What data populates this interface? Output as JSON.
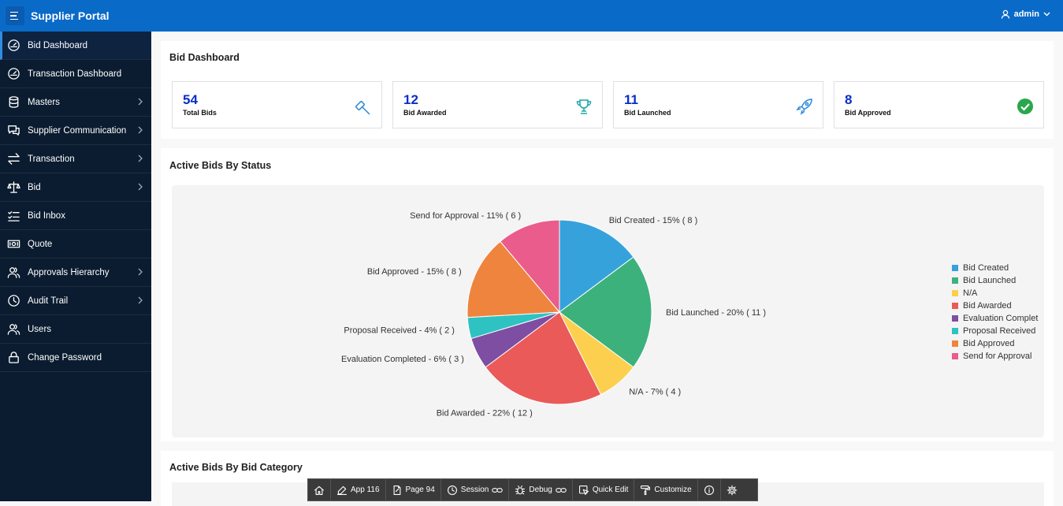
{
  "header": {
    "title": "Supplier Portal",
    "user": "admin"
  },
  "sidebar": {
    "items": [
      {
        "label": "Bid Dashboard",
        "icon": "gauge-icon",
        "active": true,
        "chevron": false
      },
      {
        "label": "Transaction Dashboard",
        "icon": "gauge-icon",
        "active": false,
        "chevron": false
      },
      {
        "label": "Masters",
        "icon": "database-icon",
        "active": false,
        "chevron": true
      },
      {
        "label": "Supplier Communication",
        "icon": "chat-icon",
        "active": false,
        "chevron": true
      },
      {
        "label": "Transaction",
        "icon": "transfer-icon",
        "active": false,
        "chevron": true
      },
      {
        "label": "Bid",
        "icon": "scale-icon",
        "active": false,
        "chevron": true
      },
      {
        "label": "Bid Inbox",
        "icon": "checklist-icon",
        "active": false,
        "chevron": false
      },
      {
        "label": "Quote",
        "icon": "money-icon",
        "active": false,
        "chevron": false
      },
      {
        "label": "Approvals Hierarchy",
        "icon": "users-icon",
        "active": false,
        "chevron": true
      },
      {
        "label": "Audit Trail",
        "icon": "history-icon",
        "active": false,
        "chevron": true
      },
      {
        "label": "Users",
        "icon": "users-icon",
        "active": false,
        "chevron": false
      },
      {
        "label": "Change Password",
        "icon": "lock-icon",
        "active": false,
        "chevron": false
      }
    ]
  },
  "dashboard": {
    "title": "Bid Dashboard",
    "cards": [
      {
        "value": "54",
        "label": "Total Bids",
        "icon": "gavel-icon"
      },
      {
        "value": "12",
        "label": "Bid Awarded",
        "icon": "trophy-icon"
      },
      {
        "value": "11",
        "label": "Bid Launched",
        "icon": "rocket-icon"
      },
      {
        "value": "8",
        "label": "Bid Approved",
        "icon": "check-circle-icon"
      }
    ]
  },
  "status_section": {
    "title": "Active Bids By Status"
  },
  "category_section": {
    "title": "Active Bids By Bid Category"
  },
  "chart_data": {
    "type": "pie",
    "title": "Active Bids By Status",
    "slices": [
      {
        "name": "Bid Created",
        "value": 8,
        "percent": 15,
        "label": "Bid Created - 15% ( 8 )",
        "color": "#36a2dc"
      },
      {
        "name": "Bid Launched",
        "value": 11,
        "percent": 20,
        "label": "Bid Launched - 20% ( 11 )",
        "color": "#3cb17c"
      },
      {
        "name": "N/A",
        "value": 4,
        "percent": 7,
        "label": "N/A - 7% ( 4 )",
        "color": "#fcd04e"
      },
      {
        "name": "Bid Awarded",
        "value": 12,
        "percent": 22,
        "label": "Bid Awarded - 22% ( 12 )",
        "color": "#ea5a58"
      },
      {
        "name": "Evaluation Completed",
        "value": 3,
        "percent": 6,
        "label": "Evaluation Completed - 6% ( 3 )",
        "color": "#7d4ea2"
      },
      {
        "name": "Proposal Received",
        "value": 2,
        "percent": 4,
        "label": "Proposal Received - 4% ( 2 )",
        "color": "#2fc2c2"
      },
      {
        "name": "Bid Approved",
        "value": 8,
        "percent": 15,
        "label": "Bid Approved - 15% ( 8 )",
        "color": "#ef843e"
      },
      {
        "name": "Send for Approval",
        "value": 6,
        "percent": 11,
        "label": "Send for Approval - 11% ( 6 )",
        "color": "#e95c8b"
      }
    ],
    "legend": [
      "Bid Created",
      "Bid Launched",
      "N/A",
      "Bid Awarded",
      "Evaluation Complet",
      "Proposal Received",
      "Bid Approved",
      "Send for Approval"
    ],
    "legend_position": "right"
  },
  "devbar": {
    "items": [
      {
        "label": "",
        "icon": "home-icon"
      },
      {
        "label": "App 116",
        "icon": "edit-icon"
      },
      {
        "label": "Page 94",
        "icon": "page-edit-icon"
      },
      {
        "label": "Session",
        "icon": "clock-icon"
      },
      {
        "label": "Debug",
        "icon": "bug-icon"
      },
      {
        "label": "Quick Edit",
        "icon": "cursor-icon"
      },
      {
        "label": "Customize",
        "icon": "paint-roller-icon"
      },
      {
        "label": "",
        "icon": "info-icon"
      },
      {
        "label": "",
        "icon": "gear-icon"
      }
    ]
  }
}
